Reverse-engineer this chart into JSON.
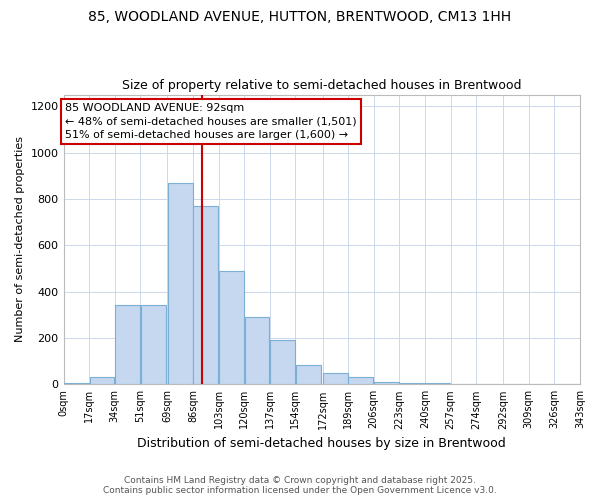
{
  "title_line1": "85, WOODLAND AVENUE, HUTTON, BRENTWOOD, CM13 1HH",
  "title_line2": "Size of property relative to semi-detached houses in Brentwood",
  "xlabel": "Distribution of semi-detached houses by size in Brentwood",
  "ylabel": "Number of semi-detached properties",
  "bin_labels": [
    "0sqm",
    "17sqm",
    "34sqm",
    "51sqm",
    "69sqm",
    "86sqm",
    "103sqm",
    "120sqm",
    "137sqm",
    "154sqm",
    "172sqm",
    "189sqm",
    "206sqm",
    "223sqm",
    "240sqm",
    "257sqm",
    "274sqm",
    "292sqm",
    "309sqm",
    "326sqm",
    "343sqm"
  ],
  "bin_edges": [
    0,
    17,
    34,
    51,
    69,
    86,
    103,
    120,
    137,
    154,
    172,
    189,
    206,
    223,
    240,
    257,
    274,
    292,
    309,
    326,
    343
  ],
  "counts": [
    5,
    30,
    340,
    340,
    870,
    770,
    490,
    290,
    190,
    85,
    50,
    30,
    10,
    5,
    5,
    3,
    2,
    1,
    0,
    0
  ],
  "bar_color": "#c5d8ef",
  "bar_edge_color": "#7bafd4",
  "property_size": 92,
  "red_line_color": "#cc0000",
  "annotation_text_line1": "85 WOODLAND AVENUE: 92sqm",
  "annotation_text_line2": "← 48% of semi-detached houses are smaller (1,501)",
  "annotation_text_line3": "51% of semi-detached houses are larger (1,600) →",
  "annotation_box_color": "#cc0000",
  "footer_line1": "Contains HM Land Registry data © Crown copyright and database right 2025.",
  "footer_line2": "Contains public sector information licensed under the Open Government Licence v3.0.",
  "ylim": [
    0,
    1250
  ],
  "yticks": [
    0,
    200,
    400,
    600,
    800,
    1000,
    1200
  ],
  "background_color": "#ffffff",
  "grid_color": "#ccd8ea"
}
